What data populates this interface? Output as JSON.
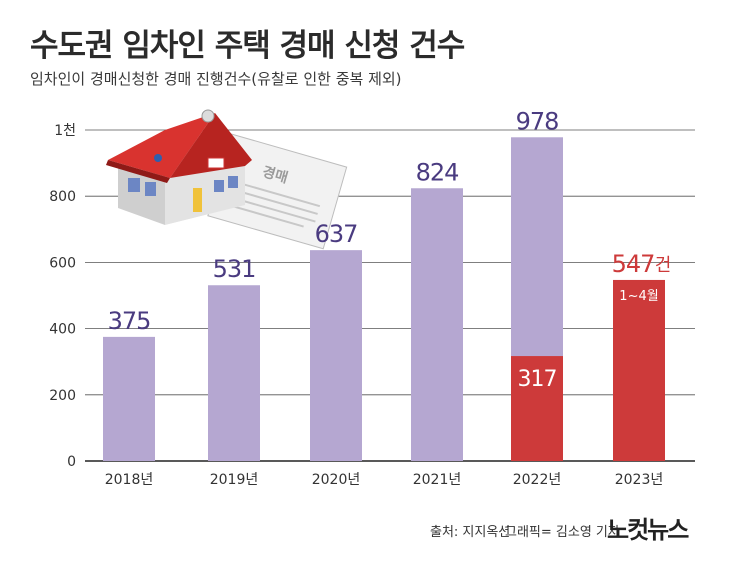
{
  "header": {
    "title": "수도권 임차인 주택 경매 신청 건수",
    "subtitle": "임차인이 경매신청한 경매 진행건수(유찰로 인한 중복 제외)"
  },
  "footer": {
    "source": "출처: 지지옥션",
    "credit": "그래픽= 김소영 기자",
    "logo": "노컷뉴스"
  },
  "illustration": {
    "icon": "house-on-auction-document-icon",
    "paper_text": "경매"
  },
  "colors": {
    "purple": "#b5a7d1",
    "red": "#cd3a3a",
    "value_label": "#4a3b80",
    "axis_text": "#333333"
  },
  "chart_data": {
    "type": "bar",
    "categories": [
      "2018년",
      "2019년",
      "2020년",
      "2021년",
      "2022년",
      "2023년"
    ],
    "values": [
      375,
      531,
      637,
      824,
      978,
      547
    ],
    "value_labels": [
      "375",
      "531",
      "637",
      "824",
      "978",
      "547"
    ],
    "highlight_2022": {
      "value": 317,
      "label": "317"
    },
    "label_2023_suffix": "건",
    "label_2023_period": "1~4월",
    "ylim": [
      0,
      1000
    ],
    "yticks": [
      0,
      200,
      400,
      600,
      800,
      1000
    ],
    "ytick_labels": [
      "0",
      "200",
      "400",
      "600",
      "800",
      "1천"
    ],
    "grid": true
  }
}
